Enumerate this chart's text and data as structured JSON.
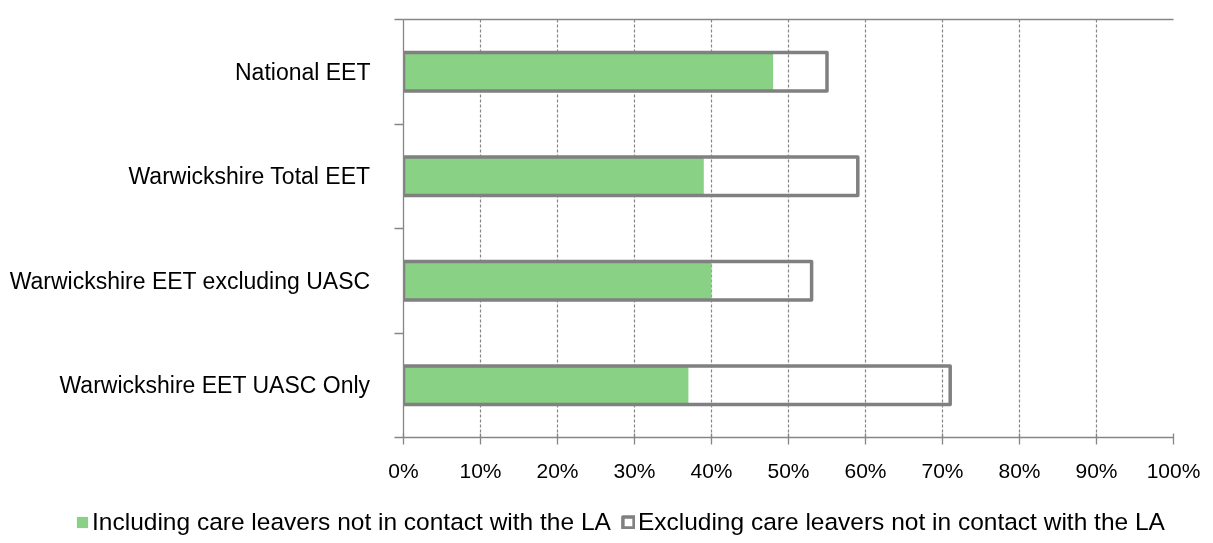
{
  "chart_data": {
    "type": "bar",
    "orientation": "horizontal",
    "categories": [
      "National EET",
      "Warwickshire Total EET",
      "Warwickshire EET excluding UASC",
      "Warwickshire EET UASC Only"
    ],
    "series": [
      {
        "name": "Including care leavers not in contact with the LA",
        "color": "#88d185",
        "values": [
          48,
          39,
          40,
          37
        ]
      },
      {
        "name": "Excluding care leavers not in contact with the LA",
        "color": "#808080",
        "values": [
          55,
          59,
          53,
          71
        ]
      }
    ],
    "xlim": [
      0,
      100
    ],
    "xticks": [
      {
        "value": 0,
        "label": "0%"
      },
      {
        "value": 10,
        "label": "10%"
      },
      {
        "value": 20,
        "label": "20%"
      },
      {
        "value": 30,
        "label": "30%"
      },
      {
        "value": 40,
        "label": "40%"
      },
      {
        "value": 50,
        "label": "50%"
      },
      {
        "value": 60,
        "label": "60%"
      },
      {
        "value": 70,
        "label": "70%"
      },
      {
        "value": 80,
        "label": "80%"
      },
      {
        "value": 90,
        "label": "90%"
      },
      {
        "value": 100,
        "label": "100%"
      }
    ],
    "grid": "x",
    "legend": "bottom"
  }
}
